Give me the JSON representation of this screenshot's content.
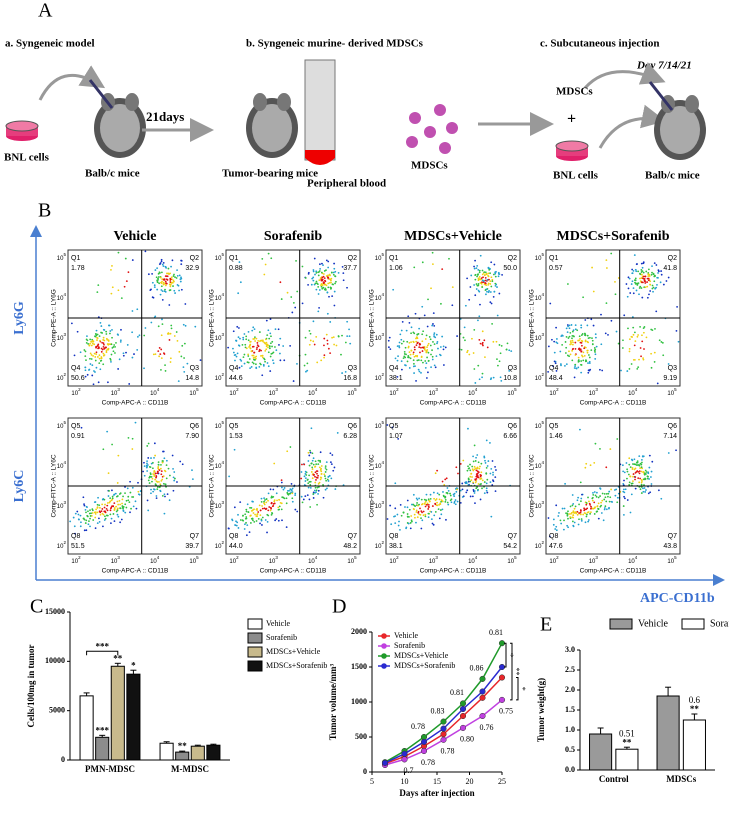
{
  "panel_a": {
    "label": "A",
    "step_a": {
      "title": "a. Syngeneic model",
      "cells": "BNL cells",
      "mice": "Balb/c mice",
      "arrow": "21days"
    },
    "step_b": {
      "title": "b. Syngeneic murine- derived MDSCs",
      "mice": "Tumor-bearing mice",
      "blood": "Peripheral blood",
      "cells": "MDSCs"
    },
    "step_c": {
      "title": "c. Subcutaneous injection",
      "days": "Day 7/14/21",
      "cells": "MDSCs",
      "plus": "+",
      "bnl": "BNL cells",
      "mice": "Balb/c mice"
    }
  },
  "panel_b": {
    "label": "B",
    "columns": [
      "Vehicle",
      "Sorafenib",
      "MDSCs+Vehicle",
      "MDSCs+Sorafenib"
    ],
    "x_marker": "APC-CD11b",
    "tick_base": "10",
    "tick_exponents": [
      "2",
      "3",
      "4",
      "5"
    ],
    "rows": [
      {
        "marker": "Ly6G",
        "y_axis_label": "Comp-PE-A :: LY6G",
        "x_axis_label": "Comp-APC-A :: CD11B",
        "quadrant_names": [
          "Q1",
          "Q2",
          "Q3",
          "Q4"
        ],
        "plots": [
          [
            "1.78",
            "32.9",
            "14.8",
            "50.6"
          ],
          [
            "0.88",
            "37.7",
            "16.8",
            "44.6"
          ],
          [
            "1.06",
            "50.0",
            "10.8",
            "38.1"
          ],
          [
            "0.57",
            "41.8",
            "9.19",
            "48.4"
          ]
        ]
      },
      {
        "marker": "Ly6C",
        "y_axis_label": "Comp-FITC-A :: LY6C",
        "x_axis_label": "Comp-APC-A :: CD11B",
        "quadrant_names": [
          "Q5",
          "Q6",
          "Q7",
          "Q8"
        ],
        "plots": [
          [
            "0.91",
            "7.90",
            "39.7",
            "51.5"
          ],
          [
            "1.53",
            "6.28",
            "48.2",
            "44.0"
          ],
          [
            "1.07",
            "6.66",
            "54.2",
            "38.1"
          ],
          [
            "1.46",
            "7.14",
            "43.8",
            "47.6"
          ]
        ]
      }
    ]
  },
  "chart_data": [
    {
      "type": "bar",
      "panel": "C",
      "y_label": "Cells/100mg in tumor",
      "categories": [
        "PMN-MDSC",
        "M-MDSC"
      ],
      "series": [
        {
          "name": "Vehicle",
          "color": "#ffffff",
          "values": [
            6500,
            1700
          ],
          "errors": [
            300,
            150
          ]
        },
        {
          "name": "Sorafenib",
          "color": "#8c8c8c",
          "values": [
            2300,
            800
          ],
          "errors": [
            200,
            100
          ]
        },
        {
          "name": "MDSCs+Vehicle",
          "color": "#c8ba8c",
          "values": [
            9500,
            1400
          ],
          "errors": [
            300,
            100
          ]
        },
        {
          "name": "MDSCs+Sorafenib",
          "color": "#111111",
          "values": [
            8700,
            1500
          ],
          "errors": [
            400,
            100
          ]
        }
      ],
      "ylim": [
        0,
        15000
      ],
      "yticks": [
        0,
        5000,
        10000,
        15000
      ],
      "annotations": [
        {
          "text": "***",
          "category": 0,
          "series": 1
        },
        {
          "text": "**",
          "category": 0,
          "series": 2
        },
        {
          "text": "*",
          "category": 0,
          "series": 3
        },
        {
          "text": "***",
          "category": 0,
          "bracket": [
            0,
            2
          ]
        },
        {
          "text": "**",
          "category": 1,
          "series": 1
        }
      ]
    },
    {
      "type": "line",
      "panel": "D",
      "x_label": "Days after injection",
      "y_label": "Tumor volume/mm³",
      "x": [
        7,
        10,
        13,
        16,
        19,
        22,
        25
      ],
      "series": [
        {
          "name": "Vehicle",
          "color": "#e8262a",
          "values": [
            120,
            220,
            370,
            540,
            800,
            1060,
            1350
          ]
        },
        {
          "name": "Sorafenib",
          "color": "#c040e0",
          "values": [
            100,
            180,
            300,
            460,
            630,
            800,
            1030
          ]
        },
        {
          "name": "MDSCs+Vehicle",
          "color": "#1f9a2a",
          "values": [
            140,
            300,
            500,
            720,
            980,
            1330,
            1840
          ]
        },
        {
          "name": "MDSCs+Sorafenib",
          "color": "#2a2ad0",
          "values": [
            130,
            260,
            430,
            620,
            900,
            1150,
            1500
          ]
        }
      ],
      "xlim": [
        5,
        25
      ],
      "xticks": [
        5,
        10,
        15,
        20,
        25
      ],
      "ylim": [
        0,
        2000
      ],
      "yticks": [
        0,
        500,
        1000,
        1500,
        2000
      ],
      "ratio_labels_above": [
        {
          "text": "0.78",
          "index": 2
        },
        {
          "text": "0.83",
          "index": 3
        },
        {
          "text": "0.81",
          "index": 4
        },
        {
          "text": "0.86",
          "index": 5
        },
        {
          "text": "0.81",
          "index": 6
        }
      ],
      "ratio_labels_below": [
        {
          "text": "0.7",
          "index": 1
        },
        {
          "text": "0.78",
          "index": 2
        },
        {
          "text": "0.78",
          "index": 3
        },
        {
          "text": "0.80",
          "index": 4
        },
        {
          "text": "0.76",
          "index": 5
        },
        {
          "text": "0.75",
          "index": 6
        }
      ],
      "significance": [
        {
          "text": "*",
          "series": [
            2,
            3
          ]
        },
        {
          "text": "**",
          "series": [
            2,
            1
          ]
        },
        {
          "text": "*",
          "series": [
            0,
            1
          ]
        }
      ]
    },
    {
      "type": "bar",
      "panel": "E",
      "y_label": "Tumor weight(g)",
      "categories": [
        "Control",
        "MDSCs"
      ],
      "series": [
        {
          "name": "Vehicle",
          "color": "#9a9a9a",
          "values": [
            0.9,
            1.85
          ],
          "errors": [
            0.15,
            0.22
          ]
        },
        {
          "name": "Sorafenib",
          "color": "#ffffff",
          "values": [
            0.52,
            1.25
          ],
          "errors": [
            0.05,
            0.15
          ]
        }
      ],
      "ylim": [
        0,
        3
      ],
      "yticks": [
        {
          "value": 0,
          "label": "0.0"
        },
        0.5,
        {
          "value": 1,
          "label": "1.0"
        },
        1.5,
        {
          "value": 2,
          "label": "2.0"
        },
        2.5,
        {
          "value": 3,
          "label": "3.0"
        }
      ],
      "annotations": [
        {
          "text": "0.51",
          "category": 0,
          "series": 1,
          "level": 2
        },
        {
          "text": "**",
          "category": 0,
          "series": 1,
          "level": 1
        },
        {
          "text": "0.6",
          "category": 1,
          "series": 1,
          "level": 2
        },
        {
          "text": "**",
          "category": 1,
          "series": 1,
          "level": 1
        }
      ]
    }
  ]
}
